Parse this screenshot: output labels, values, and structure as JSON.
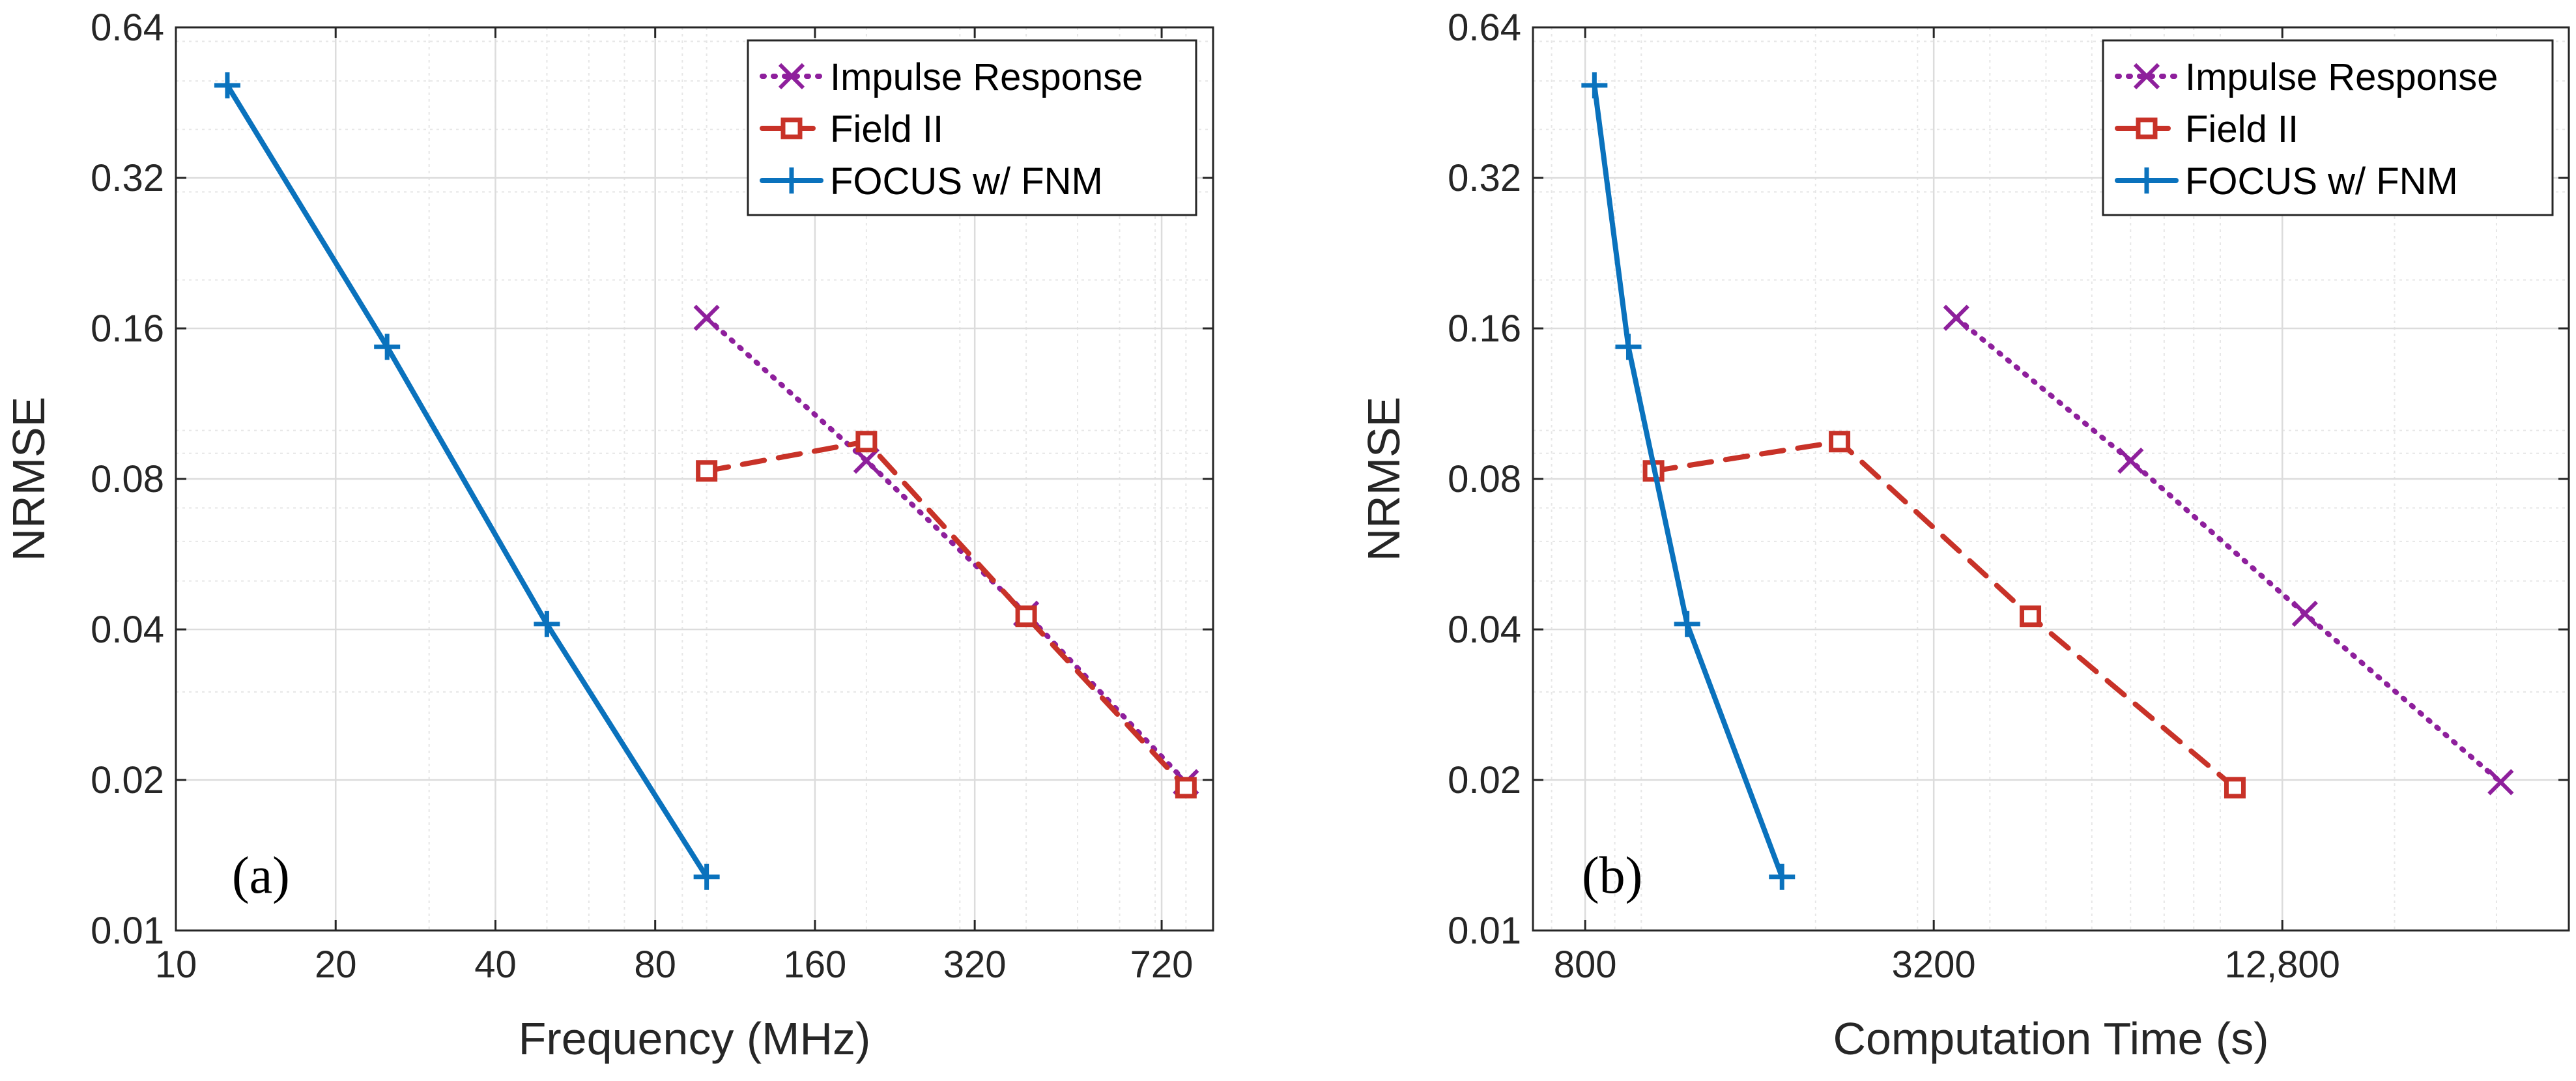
{
  "chart_data": [
    {
      "type": "line",
      "panel_label": "(a)",
      "xlabel": "Frequency (MHz)",
      "ylabel": "NRMSE",
      "xscale": "log",
      "yscale": "log",
      "xlim": [
        10,
        900
      ],
      "ylim": [
        0.01,
        0.64
      ],
      "xticks": [
        10,
        20,
        40,
        80,
        160,
        320,
        720
      ],
      "xtick_labels": [
        "10",
        "20",
        "40",
        "80",
        "160",
        "320",
        "720"
      ],
      "yticks": [
        0.01,
        0.02,
        0.04,
        0.08,
        0.16,
        0.32,
        0.64
      ],
      "ytick_labels": [
        "0.01",
        "0.02",
        "0.04",
        "0.08",
        "0.16",
        "0.32",
        "0.64"
      ],
      "grid": true,
      "legend_position": "top-right",
      "series": [
        {
          "name": "Impulse Response",
          "color": "#8e1f9c",
          "style": "dotted",
          "marker": "x",
          "x": [
            100,
            200,
            400,
            800
          ],
          "y": [
            0.168,
            0.087,
            0.043,
            0.0198
          ]
        },
        {
          "name": "Field II",
          "color": "#c83228",
          "style": "dashed",
          "marker": "square",
          "x": [
            100,
            200,
            400,
            800
          ],
          "y": [
            0.083,
            0.095,
            0.0425,
            0.0193
          ]
        },
        {
          "name": "FOCUS w/ FNM",
          "color": "#0a72bd",
          "style": "solid",
          "marker": "plus",
          "x": [
            12.5,
            25,
            50,
            100
          ],
          "y": [
            0.49,
            0.147,
            0.041,
            0.0128
          ]
        }
      ]
    },
    {
      "type": "line",
      "panel_label": "(b)",
      "xlabel": "Computation Time (s)",
      "ylabel": "NRMSE",
      "xscale": "log",
      "yscale": "log",
      "xlim": [
        650,
        40000
      ],
      "ylim": [
        0.01,
        0.64
      ],
      "xticks": [
        800,
        3200,
        12800
      ],
      "xtick_labels": [
        "800",
        "3200",
        "12,800"
      ],
      "yticks": [
        0.01,
        0.02,
        0.04,
        0.08,
        0.16,
        0.32,
        0.64
      ],
      "ytick_labels": [
        "0.01",
        "0.02",
        "0.04",
        "0.08",
        "0.16",
        "0.32",
        "0.64"
      ],
      "grid": true,
      "legend_position": "top-right",
      "series": [
        {
          "name": "Impulse Response",
          "color": "#8e1f9c",
          "style": "dotted",
          "marker": "x",
          "x": [
            3500,
            7000,
            14000,
            30500
          ],
          "y": [
            0.168,
            0.087,
            0.043,
            0.0198
          ]
        },
        {
          "name": "Field II",
          "color": "#c83228",
          "style": "dashed",
          "marker": "square",
          "x": [
            1050,
            2200,
            4700,
            10600
          ],
          "y": [
            0.083,
            0.095,
            0.0425,
            0.0193
          ]
        },
        {
          "name": "FOCUS w/ FNM",
          "color": "#0a72bd",
          "style": "solid",
          "marker": "plus",
          "x": [
            830,
            950,
            1200,
            1750
          ],
          "y": [
            0.49,
            0.147,
            0.041,
            0.0128
          ]
        }
      ]
    }
  ]
}
